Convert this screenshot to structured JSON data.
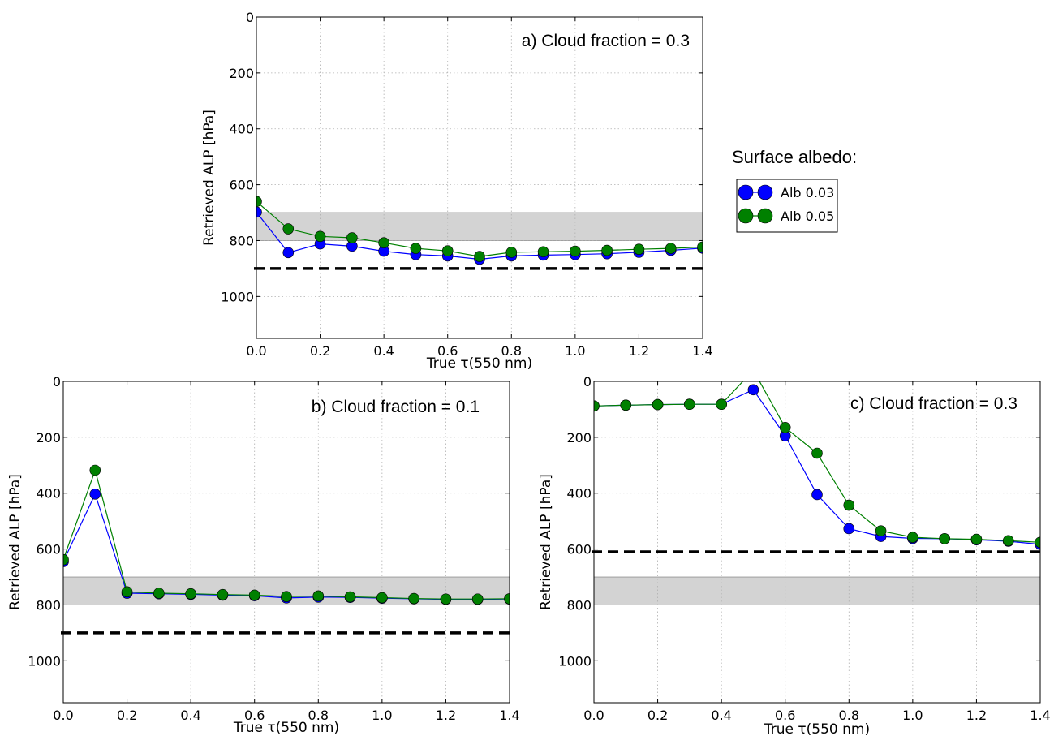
{
  "legend": {
    "title": "Surface albedo:",
    "entries": [
      {
        "label": "Alb 0.03",
        "color": "#0000ff"
      },
      {
        "label": "Alb 0.05",
        "color": "#008000"
      }
    ]
  },
  "colors": {
    "band": "#d3d3d3",
    "grid": "#b0b0b0",
    "reference_line": "#000000"
  },
  "chart_data": [
    {
      "type": "line",
      "title": "a) Cloud fraction = 0.3",
      "xlabel": "True  τ(550  nm)",
      "ylabel": "Retrieved ALP [hPa]",
      "xlim": [
        0,
        1.4
      ],
      "ylim": [
        1150,
        0
      ],
      "y_inverted": true,
      "grid": true,
      "xticks": [
        "0.0",
        "0.2",
        "0.4",
        "0.6",
        "0.8",
        "1.0",
        "1.2",
        "1.4"
      ],
      "yticks": [
        "0",
        "200",
        "400",
        "600",
        "800",
        "1000"
      ],
      "shaded_band": [
        700,
        800
      ],
      "reference_line": 900,
      "x": [
        0.0,
        0.1,
        0.2,
        0.3,
        0.4,
        0.5,
        0.6,
        0.7,
        0.8,
        0.9,
        1.0,
        1.1,
        1.2,
        1.3,
        1.4
      ],
      "series": [
        {
          "name": "Alb 0.03",
          "values": [
            698,
            843,
            812,
            820,
            838,
            850,
            855,
            867,
            855,
            852,
            850,
            847,
            842,
            835,
            827
          ]
        },
        {
          "name": "Alb 0.05",
          "values": [
            660,
            758,
            785,
            790,
            808,
            828,
            837,
            857,
            842,
            840,
            838,
            835,
            831,
            828,
            823
          ]
        }
      ]
    },
    {
      "type": "line",
      "title": "b) Cloud fraction = 0.1",
      "xlabel": "True  τ(550  nm)",
      "ylabel": "Retrieved ALP [hPa]",
      "xlim": [
        0,
        1.4
      ],
      "ylim": [
        1150,
        0
      ],
      "y_inverted": true,
      "grid": true,
      "xticks": [
        "0.0",
        "0.2",
        "0.4",
        "0.6",
        "0.8",
        "1.0",
        "1.2",
        "1.4"
      ],
      "yticks": [
        "0",
        "200",
        "400",
        "600",
        "800",
        "1000"
      ],
      "shaded_band": [
        700,
        800
      ],
      "reference_line": 900,
      "x": [
        0.0,
        0.1,
        0.2,
        0.3,
        0.4,
        0.5,
        0.6,
        0.7,
        0.8,
        0.9,
        1.0,
        1.1,
        1.2,
        1.3,
        1.4
      ],
      "series": [
        {
          "name": "Alb 0.03",
          "values": [
            645,
            403,
            758,
            760,
            762,
            765,
            767,
            775,
            772,
            773,
            776,
            778,
            780,
            780,
            779
          ]
        },
        {
          "name": "Alb 0.05",
          "values": [
            638,
            318,
            753,
            758,
            760,
            763,
            765,
            770,
            768,
            771,
            774,
            777,
            779,
            779,
            778
          ]
        }
      ]
    },
    {
      "type": "line",
      "title": "c) Cloud fraction = 0.3",
      "xlabel": "True  τ(550  nm)",
      "ylabel": "Retrieved ALP [hPa]",
      "xlim": [
        0,
        1.4
      ],
      "ylim": [
        1150,
        0
      ],
      "y_inverted": true,
      "grid": true,
      "xticks": [
        "0.0",
        "0.2",
        "0.4",
        "0.6",
        "0.8",
        "1.0",
        "1.2",
        "1.4"
      ],
      "yticks": [
        "0",
        "200",
        "400",
        "600",
        "800",
        "1000"
      ],
      "shaded_band": [
        700,
        800
      ],
      "reference_line": 610,
      "x": [
        0.0,
        0.1,
        0.2,
        0.3,
        0.4,
        0.5,
        0.6,
        0.7,
        0.8,
        0.9,
        1.0,
        1.1,
        1.2,
        1.3,
        1.4
      ],
      "series": [
        {
          "name": "Alb 0.03",
          "values": [
            88,
            85,
            83,
            82,
            82,
            30,
            195,
            405,
            527,
            555,
            562,
            563,
            567,
            572,
            583
          ]
        },
        {
          "name": "Alb 0.05",
          "values": [
            88,
            85,
            83,
            82,
            82,
            -40,
            165,
            257,
            443,
            535,
            558,
            563,
            565,
            570,
            576
          ]
        }
      ]
    }
  ]
}
